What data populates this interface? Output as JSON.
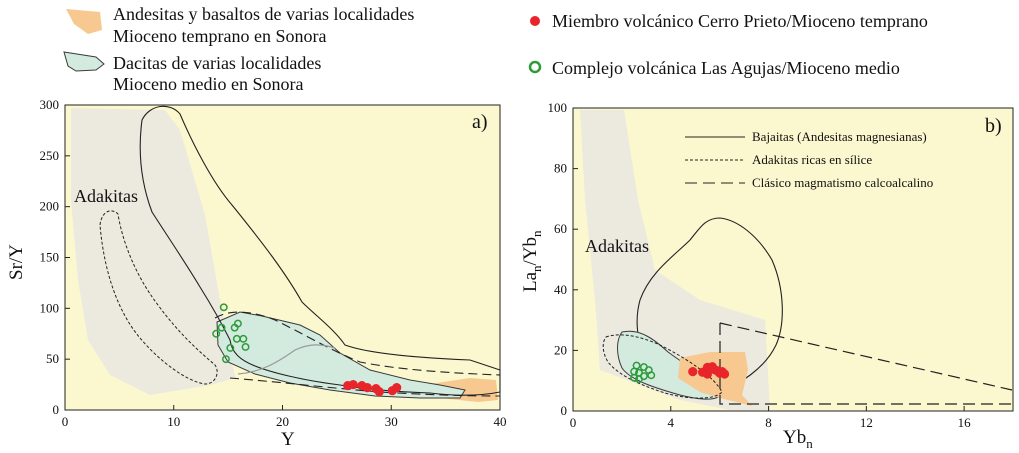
{
  "legend": {
    "andesites_line1": "Andesitas y basaltos de varias localidades",
    "andesites_line2": "Mioceno temprano en Sonora",
    "dacites_line1": "Dacitas de varias localidades",
    "dacites_line2": "Mioceno medio en Sonora",
    "cerro_prieto": "Miembro volcánico Cerro Prieto/Mioceno temprano",
    "las_agujas": "Complejo volcánica Las Agujas/Mioceno medio"
  },
  "colors": {
    "background": "#fbf8cf",
    "adakite_field": "#ece9df",
    "andesite_field": "#f7c890",
    "dacite_field": "#d3eadf",
    "dacite_outline": "#3a3a3a",
    "red_points": "#e8252b",
    "green_points": "#2e9b3a"
  },
  "chart_data": [
    {
      "type": "scatter",
      "panel": "a)",
      "xlabel": "Y",
      "ylabel": "Sr/Y",
      "xlim": [
        0,
        40
      ],
      "ylim": [
        0,
        300
      ],
      "xticks": [
        0,
        10,
        20,
        30,
        40
      ],
      "yticks": [
        0,
        50,
        100,
        150,
        200,
        250,
        300
      ],
      "region_label": "Adakitas",
      "series": [
        {
          "name": "Miembro volcánico Cerro Prieto/Mioceno temprano",
          "marker": "filled-red",
          "points": [
            [
              26.0,
              24
            ],
            [
              26.5,
              25
            ],
            [
              27.3,
              24
            ],
            [
              27.8,
              22
            ],
            [
              28.6,
              21
            ],
            [
              28.9,
              18
            ],
            [
              30.1,
              19
            ],
            [
              30.5,
              22
            ]
          ]
        },
        {
          "name": "Complejo volcánica Las Agujas/Mioceno medio",
          "marker": "open-green",
          "points": [
            [
              14.6,
              101
            ],
            [
              14.4,
              81
            ],
            [
              13.9,
              75
            ],
            [
              15.6,
              81
            ],
            [
              15.9,
              85
            ],
            [
              15.8,
              70
            ],
            [
              16.4,
              70
            ],
            [
              16.6,
              62
            ],
            [
              15.2,
              61
            ],
            [
              14.8,
              50
            ]
          ]
        }
      ]
    },
    {
      "type": "scatter",
      "panel": "b)",
      "xlabel": "Ybn",
      "ylabel": "Lan/Ybn",
      "xlim": [
        0,
        18
      ],
      "ylim": [
        0,
        100
      ],
      "xticks": [
        0,
        4,
        8,
        12,
        16
      ],
      "yticks": [
        0,
        20,
        40,
        60,
        80,
        100
      ],
      "region_label": "Adakitas",
      "inner_legend": [
        {
          "style": "solid",
          "label": "Bajaitas (Andesitas magnesianas)"
        },
        {
          "style": "dotted",
          "label": "Adakitas ricas en sílice"
        },
        {
          "style": "dashed",
          "label": "Clásico magmatismo calcoalcalino"
        }
      ],
      "series": [
        {
          "name": "Miembro volcánico Cerro Prieto/Mioceno temprano",
          "marker": "filled-red",
          "points": [
            [
              4.9,
              13
            ],
            [
              5.3,
              12.8
            ],
            [
              5.5,
              14.4
            ],
            [
              5.7,
              14.6
            ],
            [
              5.8,
              13.6
            ],
            [
              5.9,
              13.3
            ],
            [
              6.0,
              12.5
            ],
            [
              6.1,
              13.0
            ],
            [
              6.2,
              12.2
            ],
            [
              5.5,
              12.2
            ]
          ]
        },
        {
          "name": "Complejo volcánica Las Agujas/Mioceno medio",
          "marker": "open-green",
          "points": [
            [
              2.6,
              15
            ],
            [
              2.9,
              14.5
            ],
            [
              3.1,
              13.5
            ],
            [
              2.5,
              13
            ],
            [
              2.7,
              12.6
            ],
            [
              2.9,
              11.5
            ],
            [
              3.2,
              11.8
            ],
            [
              2.5,
              11
            ],
            [
              2.7,
              10.5
            ]
          ]
        }
      ]
    }
  ]
}
